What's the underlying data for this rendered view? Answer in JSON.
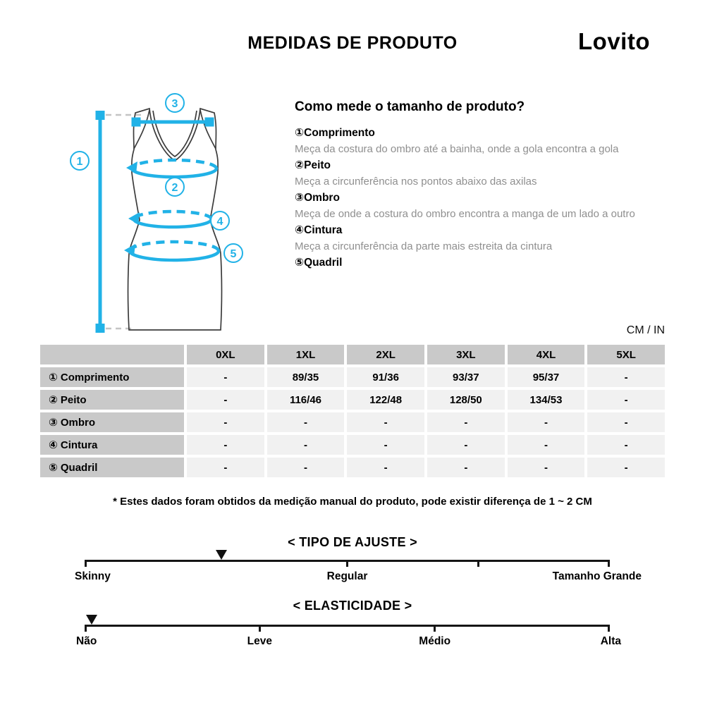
{
  "header": {
    "title": "MEDIDAS DE PRODUTO",
    "brand": "Lovito"
  },
  "colors": {
    "accent": "#21b2e7",
    "table_header_bg": "#c9c9c9",
    "table_cell_bg": "#f1f1f1"
  },
  "diagram": {
    "callouts": [
      "1",
      "2",
      "3",
      "4",
      "5"
    ]
  },
  "guide": {
    "heading": "Como mede o tamanho de produto?",
    "items": [
      {
        "label": "①Comprimento",
        "desc": "Meça da costura do ombro até a bainha, onde a gola encontra a gola"
      },
      {
        "label": "②Peito",
        "desc": "Meça a circunferência nos pontos abaixo das axilas"
      },
      {
        "label": "③Ombro",
        "desc": "Meça de onde a costura do ombro encontra a manga de um lado a outro"
      },
      {
        "label": "④Cintura",
        "desc": "Meça a circunferência da parte mais estreita da cintura"
      },
      {
        "label": "⑤Quadril",
        "desc": ""
      }
    ]
  },
  "units_label": "CM / IN",
  "size_table": {
    "columns": [
      "0XL",
      "1XL",
      "2XL",
      "3XL",
      "4XL",
      "5XL"
    ],
    "rows": [
      {
        "label": "① Comprimento",
        "values": [
          "-",
          "89/35",
          "91/36",
          "93/37",
          "95/37",
          "-"
        ]
      },
      {
        "label": "② Peito",
        "values": [
          "-",
          "116/46",
          "122/48",
          "128/50",
          "134/53",
          "-"
        ]
      },
      {
        "label": "③ Ombro",
        "values": [
          "-",
          "-",
          "-",
          "-",
          "-",
          "-"
        ]
      },
      {
        "label": "④ Cintura",
        "values": [
          "-",
          "-",
          "-",
          "-",
          "-",
          "-"
        ]
      },
      {
        "label": "⑤ Quadril",
        "values": [
          "-",
          "-",
          "-",
          "-",
          "-",
          "-"
        ]
      }
    ]
  },
  "footnote": "* Estes dados foram obtidos da medição manual do produto, pode existir diferença de 1 ~ 2 CM",
  "fit_scale": {
    "title": "< TIPO DE AJUSTE >",
    "labels": [
      "Skinny",
      "Regular",
      "Tamanho Grande"
    ],
    "marker_pct": 26
  },
  "elasticity_scale": {
    "title": "< ELASTICIDADE >",
    "labels": [
      "Não",
      "Leve",
      "Médio",
      "Alta"
    ],
    "marker_pct": 1.4
  }
}
